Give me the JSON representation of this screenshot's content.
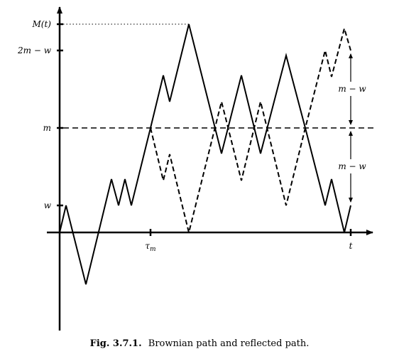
{
  "caption": {
    "label": "Fig. 3.7.1.",
    "text": "Brownian path and reflected path."
  },
  "y_axis_labels": {
    "Mt": "M(t)",
    "two_m_minus_w": "2m − w",
    "m": "m",
    "w": "w"
  },
  "x_axis_labels": {
    "tau_m": "τm",
    "t": "t"
  },
  "annotations": {
    "upper_gap": "m − w",
    "lower_gap": "m − w"
  }
}
